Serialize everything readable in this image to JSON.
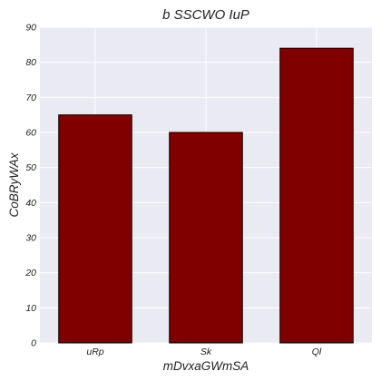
{
  "chart_data": {
    "type": "bar",
    "title": "b SSCWO IuP",
    "xlabel": "mDvxaGWmSA",
    "ylabel": "CoBRyWAx",
    "categories": [
      "uRp",
      "Sk",
      "Ql"
    ],
    "values": [
      65,
      60,
      84
    ],
    "ylim": [
      0,
      90
    ],
    "yticks": [
      0,
      10,
      20,
      30,
      40,
      50,
      60,
      70,
      80,
      90
    ],
    "grid": true,
    "legend": "none",
    "colors": {
      "bar": "#800000",
      "bar_edge": "#000000",
      "plot_bg": "#eaeaf2",
      "grid": "#ffffff"
    }
  }
}
